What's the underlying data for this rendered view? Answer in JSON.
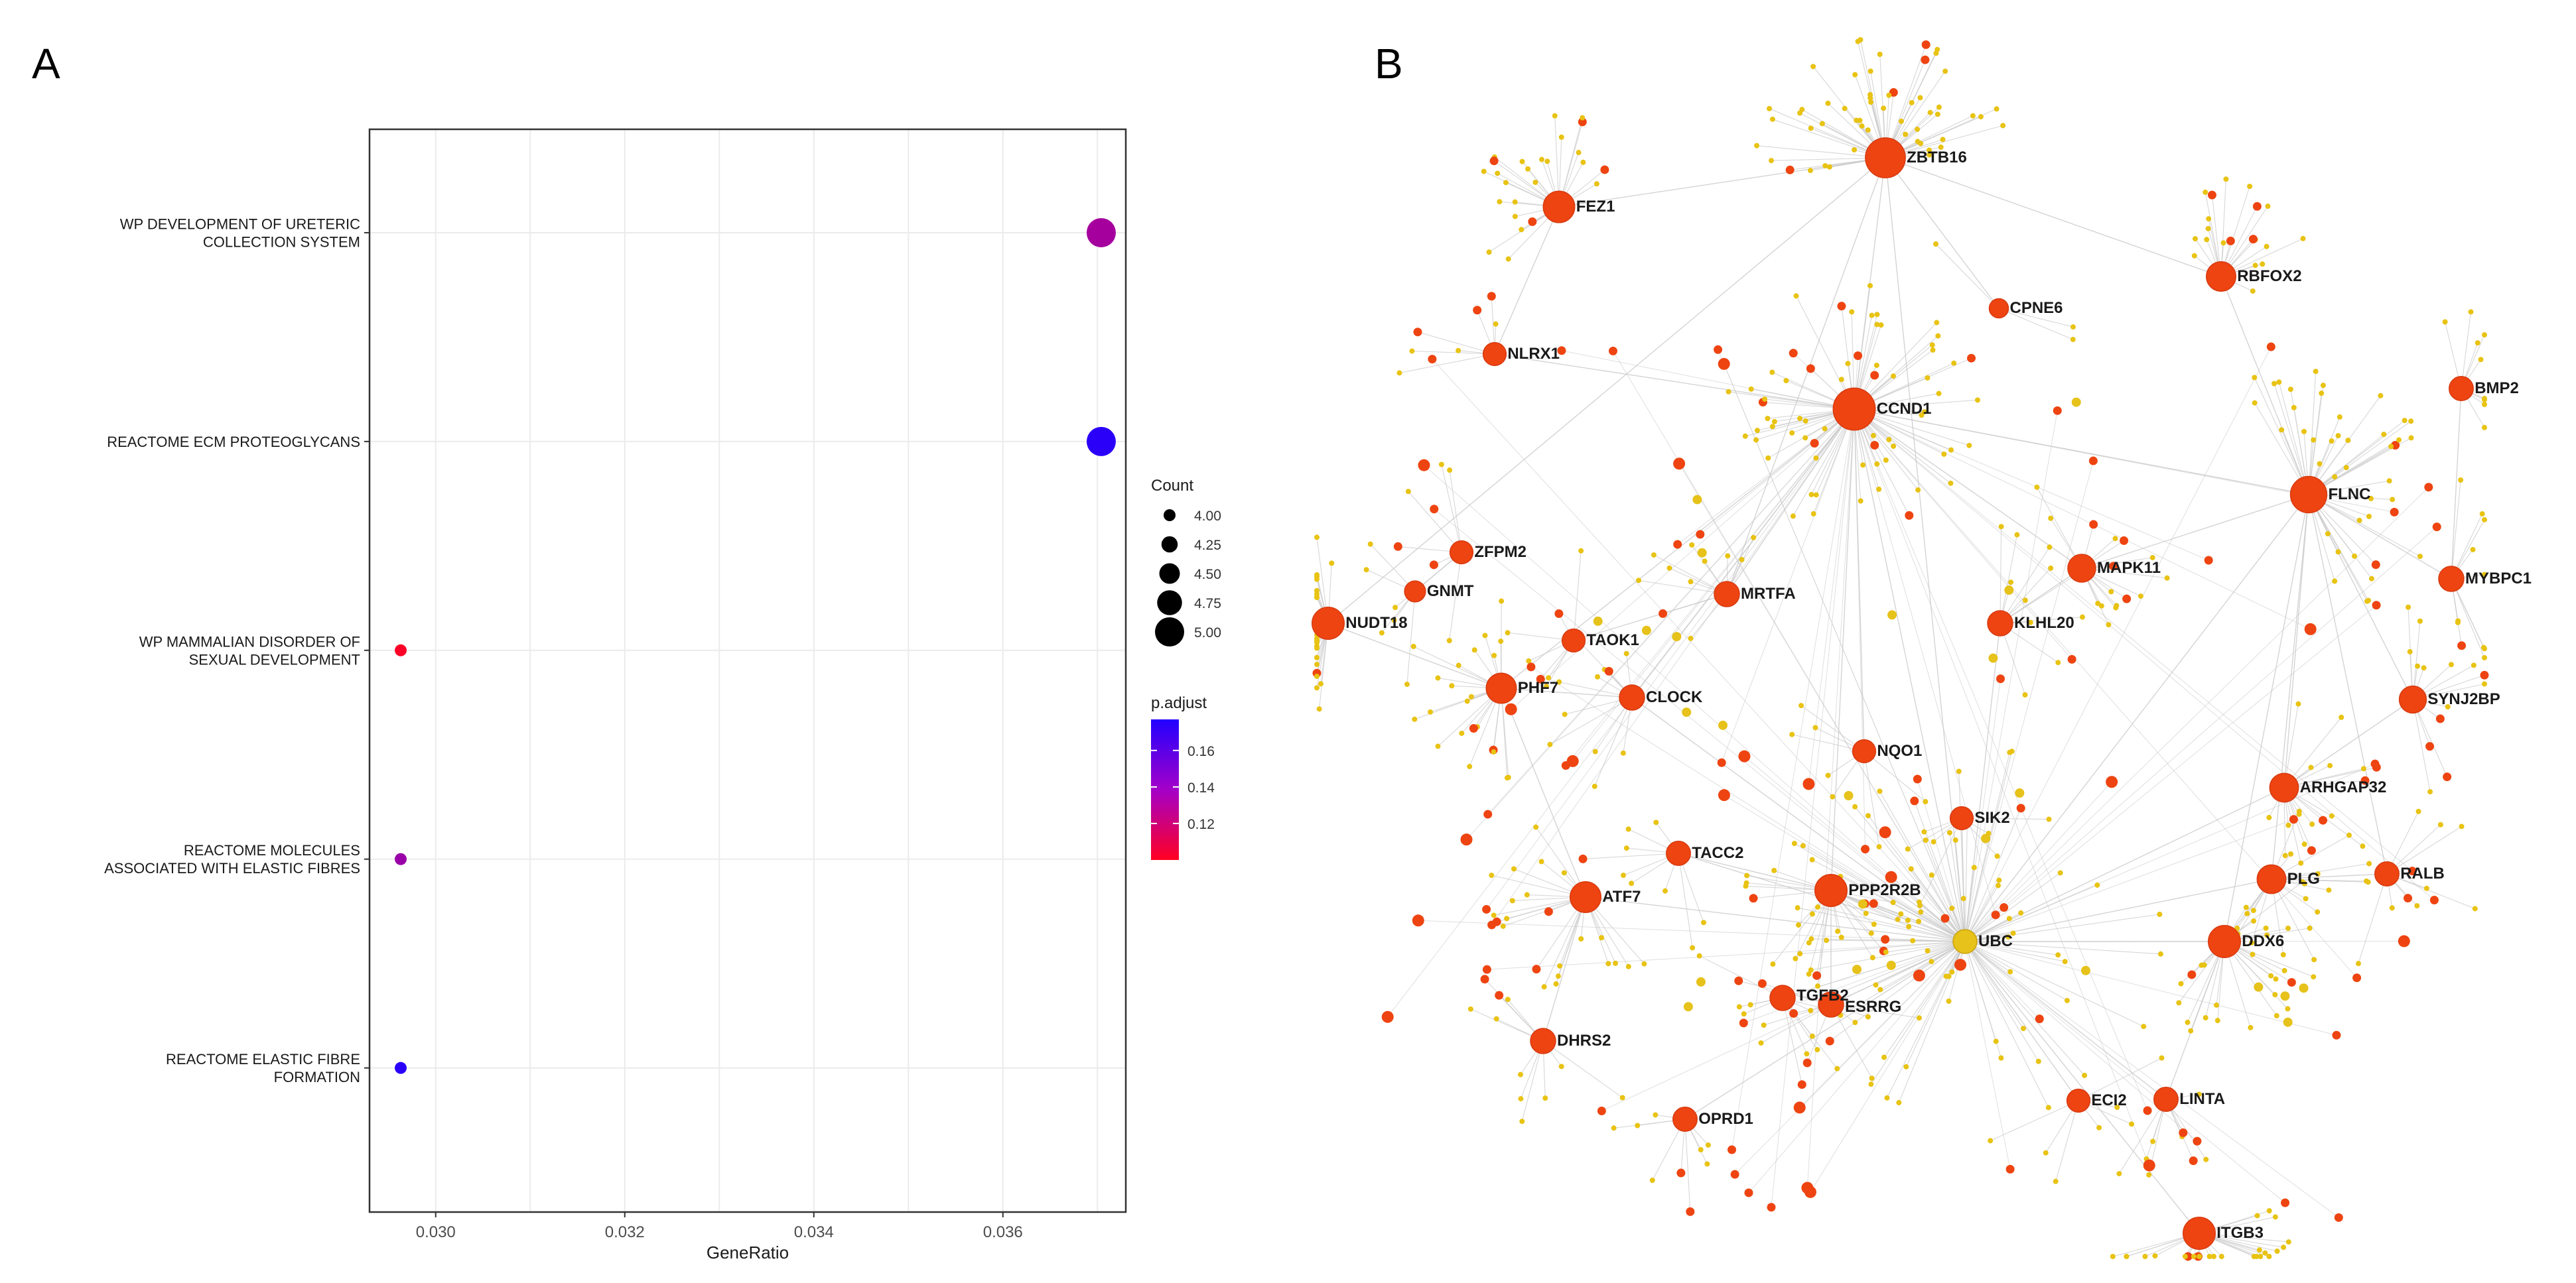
{
  "panels": {
    "a_label": "A",
    "b_label": "B"
  },
  "colors": {
    "padj_low": "#ff0022",
    "padj_mid": "#c0008a",
    "padj_high": "#2200ff",
    "hub_node": "#ee4411",
    "hub_stroke": "#d83a10",
    "leaf_node": "#e8c313",
    "ubc_node": "#e6c21a",
    "edge": "#c9c9c9",
    "panel_border": "#333333"
  },
  "chart_data": [
    {
      "type": "scatter",
      "title": "",
      "xlabel": "GeneRatio",
      "ylabel": "",
      "xlim": [
        0.0293,
        0.0373
      ],
      "x_ticks": [
        {
          "value": 0.03,
          "label": "0.030"
        },
        {
          "value": 0.032,
          "label": "0.032"
        },
        {
          "value": 0.034,
          "label": "0.034"
        },
        {
          "value": 0.036,
          "label": "0.036"
        }
      ],
      "grid": true,
      "categories": [
        {
          "lines": [
            "WP DEVELOPMENT OF URETERIC",
            "COLLECTION SYSTEM"
          ],
          "gene_ratio": 0.03704,
          "count": 5,
          "p_adjust": 0.145
        },
        {
          "lines": [
            "REACTOME ECM PROTEOGLYCANS"
          ],
          "gene_ratio": 0.03704,
          "count": 5,
          "p_adjust": 0.175
        },
        {
          "lines": [
            "WP MAMMALIAN DISORDER OF",
            "SEXUAL DEVELOPMENT"
          ],
          "gene_ratio": 0.02963,
          "count": 4,
          "p_adjust": 0.102
        },
        {
          "lines": [
            "REACTOME MOLECULES",
            "ASSOCIATED WITH ELASTIC FIBRES"
          ],
          "gene_ratio": 0.02963,
          "count": 4,
          "p_adjust": 0.148
        },
        {
          "lines": [
            "REACTOME ELASTIC FIBRE",
            "FORMATION"
          ],
          "gene_ratio": 0.02963,
          "count": 4,
          "p_adjust": 0.175
        }
      ],
      "size_legend": {
        "title": "Count",
        "min": 4.0,
        "max": 5.0,
        "entries": [
          {
            "value": 4.0,
            "label": "4.00"
          },
          {
            "value": 4.25,
            "label": "4.25"
          },
          {
            "value": 4.5,
            "label": "4.50"
          },
          {
            "value": 4.75,
            "label": "4.75"
          },
          {
            "value": 5.0,
            "label": "5.00"
          }
        ]
      },
      "color_legend": {
        "title": "p.adjust",
        "min": 0.1,
        "max": 0.177,
        "ticks": [
          {
            "value": 0.16,
            "label": "0.16"
          },
          {
            "value": 0.14,
            "label": "0.14"
          },
          {
            "value": 0.12,
            "label": "0.12"
          }
        ]
      }
    },
    {
      "type": "network",
      "hubs": [
        {
          "name": "ZBTB16",
          "degree": 60
        },
        {
          "name": "FEZ1",
          "degree": 28
        },
        {
          "name": "RBFOX2",
          "degree": 22
        },
        {
          "name": "CPNE6",
          "degree": 3
        },
        {
          "name": "NLRX1",
          "degree": 8
        },
        {
          "name": "CCND1",
          "degree": 70
        },
        {
          "name": "BMP2",
          "degree": 10
        },
        {
          "name": "FLNC",
          "degree": 45
        },
        {
          "name": "ZFPM2",
          "degree": 8
        },
        {
          "name": "GNMT",
          "degree": 5
        },
        {
          "name": "MRTFA",
          "degree": 12
        },
        {
          "name": "MAPK11",
          "degree": 18
        },
        {
          "name": "MYBPC1",
          "degree": 12
        },
        {
          "name": "NUDT18",
          "degree": 30
        },
        {
          "name": "TAOK1",
          "degree": 8
        },
        {
          "name": "KLHL20",
          "degree": 12
        },
        {
          "name": "PHF7",
          "degree": 24
        },
        {
          "name": "CLOCK",
          "degree": 12
        },
        {
          "name": "SYNJ2BP",
          "degree": 16
        },
        {
          "name": "NQO1",
          "degree": 8
        },
        {
          "name": "ARHGAP32",
          "degree": 20
        },
        {
          "name": "SIK2",
          "degree": 8
        },
        {
          "name": "TACC2",
          "degree": 10
        },
        {
          "name": "PLG",
          "degree": 20
        },
        {
          "name": "RALB",
          "degree": 10
        },
        {
          "name": "PPP2R2B",
          "degree": 30
        },
        {
          "name": "ATF7",
          "degree": 26
        },
        {
          "name": "UBC",
          "degree": 80
        },
        {
          "name": "DDX6",
          "degree": 30
        },
        {
          "name": "TGFB2",
          "degree": 12
        },
        {
          "name": "ESRRG",
          "degree": 12
        },
        {
          "name": "DHRS2",
          "degree": 12
        },
        {
          "name": "ECI2",
          "degree": 8
        },
        {
          "name": "LINTA",
          "degree": 10
        },
        {
          "name": "OPRD1",
          "degree": 10
        },
        {
          "name": "ITGB3",
          "degree": 30
        }
      ]
    }
  ]
}
